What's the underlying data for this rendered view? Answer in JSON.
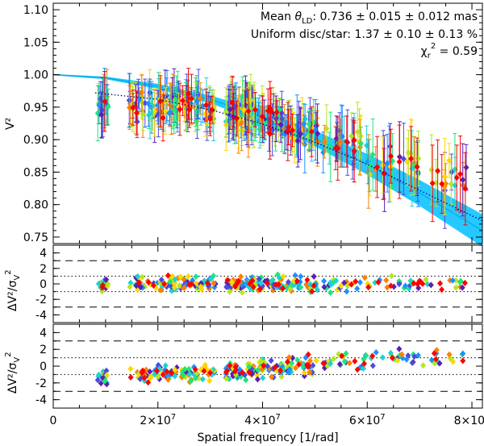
{
  "chart_data": {
    "type": "scatter",
    "description_free": true,
    "xlabel": "Spatial frequency [1/rad]",
    "xlim": [
      0,
      82000000
    ],
    "x_ticks": [
      {
        "value": 0,
        "label": "0"
      },
      {
        "value": 20000000,
        "label": "2×10",
        "exp": "7"
      },
      {
        "value": 40000000,
        "label": "4×10",
        "exp": "7"
      },
      {
        "value": 60000000,
        "label": "6×10",
        "exp": "7"
      },
      {
        "value": 80000000,
        "label": "8×10",
        "exp": "7"
      }
    ],
    "panels": [
      {
        "id": "visibility",
        "ylabel": "V²",
        "ylim": [
          0.74,
          1.11
        ],
        "y_ticks": [
          "0.75",
          "0.80",
          "0.85",
          "0.90",
          "0.95",
          "1.00",
          "1.05",
          "1.10"
        ],
        "annotations": [
          {
            "prefix": "Mean ",
            "symbol": "θ",
            "sub": "LD",
            "suffix": ": 0.736 ± 0.015 ± 0.012 mas"
          },
          {
            "text": "Uniform disc/star:  1.37 ± 0.10 ± 0.13 %"
          },
          {
            "symbol": "χ",
            "sub": "r",
            "sup": "2",
            "suffix": " =   0.59"
          }
        ],
        "model_curves": [
          {
            "name": "uniform disc + star model",
            "style": "solid band",
            "color": "#00bfff",
            "x": [
              0,
              10000000,
              20000000,
              30000000,
              40000000,
              50000000,
              60000000,
              70000000,
              82000000
            ],
            "y": [
              1.0,
              0.995,
              0.982,
              0.962,
              0.935,
              0.902,
              0.862,
              0.818,
              0.76
            ],
            "band_width": [
              0.001,
              0.002,
              0.004,
              0.006,
              0.009,
              0.012,
              0.016,
              0.02,
              0.025
            ]
          },
          {
            "name": "single star model",
            "style": "dotted",
            "color": "#000080",
            "x": [
              8000000,
              20000000,
              30000000,
              40000000,
              50000000,
              60000000,
              70000000,
              82000000
            ],
            "y": [
              0.972,
              0.962,
              0.946,
              0.924,
              0.896,
              0.862,
              0.822,
              0.775
            ]
          }
        ],
        "clusters": [
          {
            "x_range": [
              8500000,
              10500000
            ],
            "y_center": 0.955,
            "y_spread": 0.03,
            "n": 22,
            "err": 0.04
          },
          {
            "x_range": [
              14500000,
              20000000
            ],
            "y_center": 0.952,
            "y_spread": 0.03,
            "n": 34,
            "err": 0.035
          },
          {
            "x_range": [
              20000000,
              28000000
            ],
            "y_center": 0.955,
            "y_spread": 0.03,
            "n": 70,
            "err": 0.035
          },
          {
            "x_range": [
              28000000,
              31000000
            ],
            "y_center": 0.945,
            "y_spread": 0.025,
            "n": 24,
            "err": 0.03
          },
          {
            "x_range": [
              33000000,
              38500000
            ],
            "y_center": 0.945,
            "y_spread": 0.03,
            "n": 70,
            "err": 0.04
          },
          {
            "x_range": [
              38500000,
              44000000
            ],
            "y_center": 0.93,
            "y_spread": 0.03,
            "n": 50,
            "err": 0.035
          },
          {
            "x_range": [
              44000000,
              50500000
            ],
            "y_center": 0.915,
            "y_spread": 0.03,
            "n": 44,
            "err": 0.04
          },
          {
            "x_range": [
              51500000,
              59000000
            ],
            "y_center": 0.895,
            "y_spread": 0.03,
            "n": 30,
            "err": 0.045
          },
          {
            "x_range": [
              59000000,
              70000000
            ],
            "y_center": 0.86,
            "y_spread": 0.035,
            "n": 34,
            "err": 0.05
          },
          {
            "x_range": [
              70000000,
              79000000
            ],
            "y_center": 0.835,
            "y_spread": 0.035,
            "n": 20,
            "err": 0.05
          }
        ]
      },
      {
        "id": "residuals-binary",
        "ylabel": "ΔV²/σ",
        "ylim": [
          -5,
          5
        ],
        "y_ticks": [
          "-4",
          "-2",
          "0",
          "2",
          "4"
        ],
        "dashed_lines": [
          -3,
          3
        ],
        "dotted_lines": [
          -1,
          1
        ],
        "trend": {
          "x": [
            0,
            82000000
          ],
          "y": [
            0,
            0
          ]
        }
      },
      {
        "id": "residuals-single",
        "ylabel": "ΔV²/σ",
        "ylim": [
          -5,
          5
        ],
        "y_ticks": [
          "-4",
          "-2",
          "0",
          "2",
          "4"
        ],
        "dashed_lines": [
          -3,
          3
        ],
        "dotted_lines": [
          -1,
          1
        ],
        "trend": {
          "x": [
            8000000,
            25000000,
            45000000,
            60000000,
            80000000
          ],
          "y": [
            -1.2,
            -0.9,
            -0.2,
            0.8,
            1.6
          ]
        }
      }
    ],
    "color_scale": [
      "#ff0000",
      "#ff7f00",
      "#ffd700",
      "#b4e61e",
      "#1ee678",
      "#1ed2d2",
      "#1e90ff",
      "#4b4bdc",
      "#5a1eb4"
    ]
  }
}
